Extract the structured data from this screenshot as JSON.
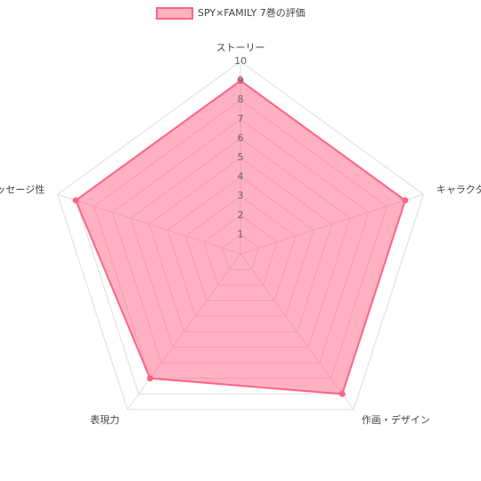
{
  "chart_data": {
    "type": "radar",
    "categories": [
      "ストーリー",
      "キャラクター",
      "作画・デザイン",
      "表現力",
      "メッセージ性"
    ],
    "series": [
      {
        "name": "SPY×FAMILY 7巻の評価",
        "color": "#ff6384",
        "values": [
          9,
          9,
          9,
          8,
          9
        ]
      }
    ],
    "rlim": [
      0,
      10
    ],
    "rticks": [
      1,
      2,
      3,
      4,
      5,
      6,
      7,
      8,
      9,
      10
    ],
    "grid": true,
    "legend": "top"
  }
}
